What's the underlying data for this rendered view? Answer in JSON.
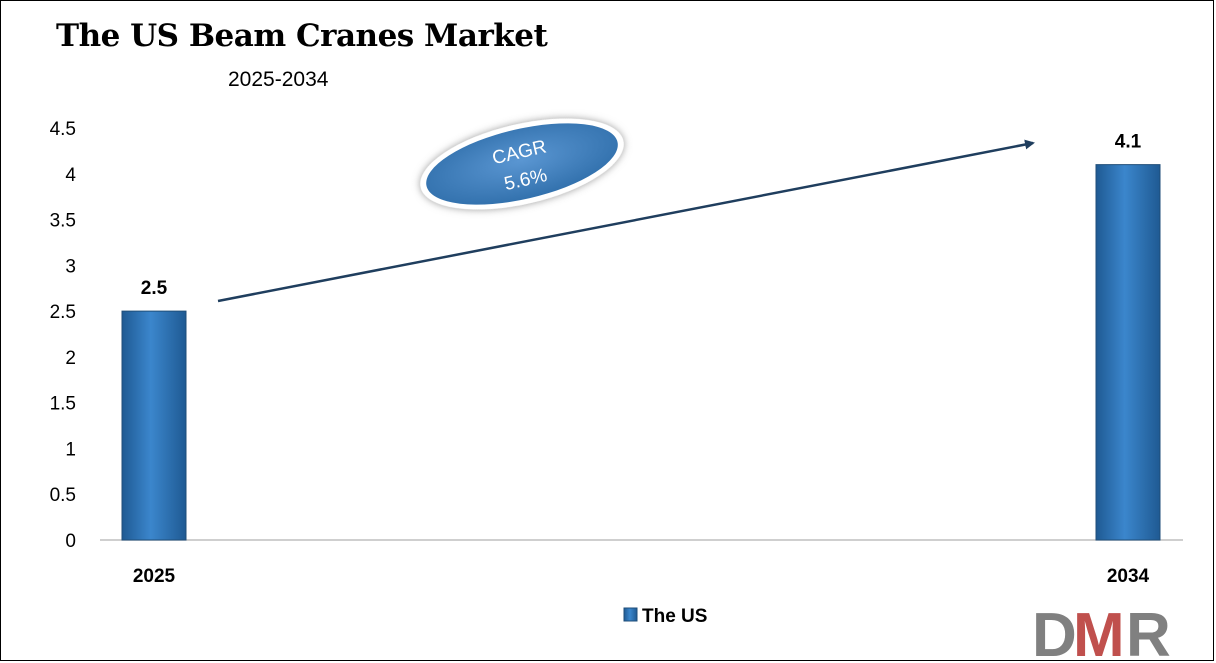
{
  "chart_data": {
    "type": "bar",
    "title": "The US Beam Cranes Market",
    "subtitle": "2025-2034",
    "categories": [
      "2025",
      "2034"
    ],
    "series": [
      {
        "name": "The US",
        "values": [
          2.5,
          4.1
        ],
        "data_labels": [
          "2.5",
          "4.1"
        ]
      }
    ],
    "ylim": [
      0,
      4.5
    ],
    "yticks": [
      "0",
      "0.5",
      "1",
      "1.5",
      "2",
      "2.5",
      "3",
      "3.5",
      "4",
      "4.5"
    ],
    "grid": false,
    "legend": "bottom",
    "annotation": {
      "line1": "CAGR",
      "line2": "5.6%"
    }
  },
  "colors": {
    "bar": "#2e75b6",
    "bar_dark": "#1f4e79",
    "arrow": "#1f3e5e",
    "logo_grey": "#808080",
    "logo_red": "#c0504d"
  },
  "logo": {
    "text": "DMR"
  }
}
